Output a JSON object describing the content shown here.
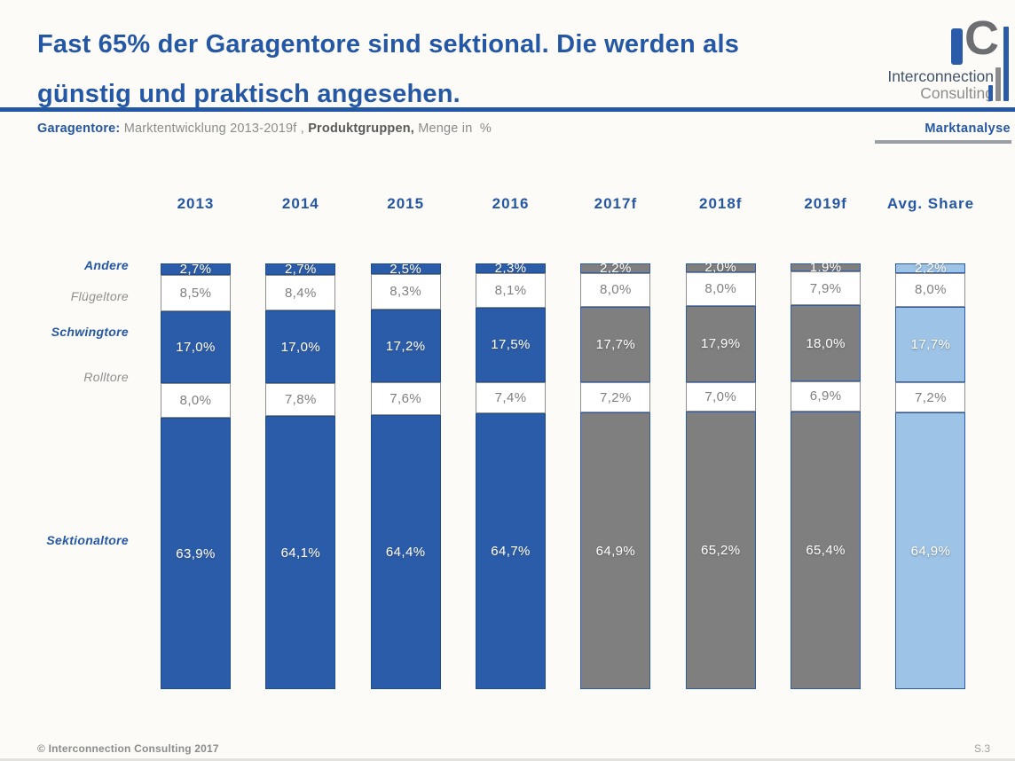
{
  "header": {
    "title_line1": "Fast 65% der Garagentore sind sektional. Die werden als",
    "title_line2": "günstig und praktisch angesehen.",
    "subtitle": {
      "lead": "Garagentore",
      "colon": ": ",
      "part1": "Marktentwicklung 2013-2019f , ",
      "part2": "Produktgruppen,",
      "part3": " Menge in  %"
    },
    "tag": "Marktanalyse",
    "logo": {
      "c": "C",
      "line1": "Interconnection",
      "line2": "Consulting"
    }
  },
  "footer": {
    "copyright": "© Interconnection Consulting 2017",
    "page": "S.3"
  },
  "colors": {
    "title_blue": "#2457a4",
    "bar_blue": "#2b5ca9",
    "bar_gray": "#7f7f7f",
    "bar_light": "#9dc3e6",
    "white_segment": "#ffffff",
    "gray_text": "#8c8c8c"
  },
  "chart_data": {
    "type": "bar",
    "stacked": true,
    "title": "Garagentore: Marktentwicklung 2013-2019f, Produktgruppen, Menge in %",
    "unit": "%",
    "value_format": "comma decimal, 1 dp, suffix %",
    "ylim": [
      0,
      100
    ],
    "grid": false,
    "legend_position": "left-row-labels",
    "categories": [
      "2013",
      "2014",
      "2015",
      "2016",
      "2017f",
      "2018f",
      "2019f",
      "Avg. Share"
    ],
    "column_styles": [
      "blue",
      "blue",
      "blue",
      "blue",
      "gray",
      "gray",
      "gray",
      "light"
    ],
    "series": [
      {
        "name": "Andere",
        "label_style": "blue",
        "values": [
          2.7,
          2.7,
          2.5,
          2.3,
          2.2,
          2.0,
          1.9,
          2.2
        ]
      },
      {
        "name": "Flügeltore",
        "label_style": "gray",
        "values": [
          8.5,
          8.4,
          8.3,
          8.1,
          8.0,
          8.0,
          7.9,
          8.0
        ]
      },
      {
        "name": "Schwingtore",
        "label_style": "blue",
        "values": [
          17.0,
          17.0,
          17.2,
          17.5,
          17.7,
          17.9,
          18.0,
          17.7
        ]
      },
      {
        "name": "Rolltore",
        "label_style": "gray",
        "values": [
          8.0,
          7.8,
          7.6,
          7.4,
          7.2,
          7.0,
          6.9,
          7.2
        ]
      },
      {
        "name": "Sektionaltore",
        "label_style": "blue",
        "values": [
          63.9,
          64.1,
          64.4,
          64.7,
          64.9,
          65.2,
          65.4,
          64.9
        ]
      }
    ]
  }
}
